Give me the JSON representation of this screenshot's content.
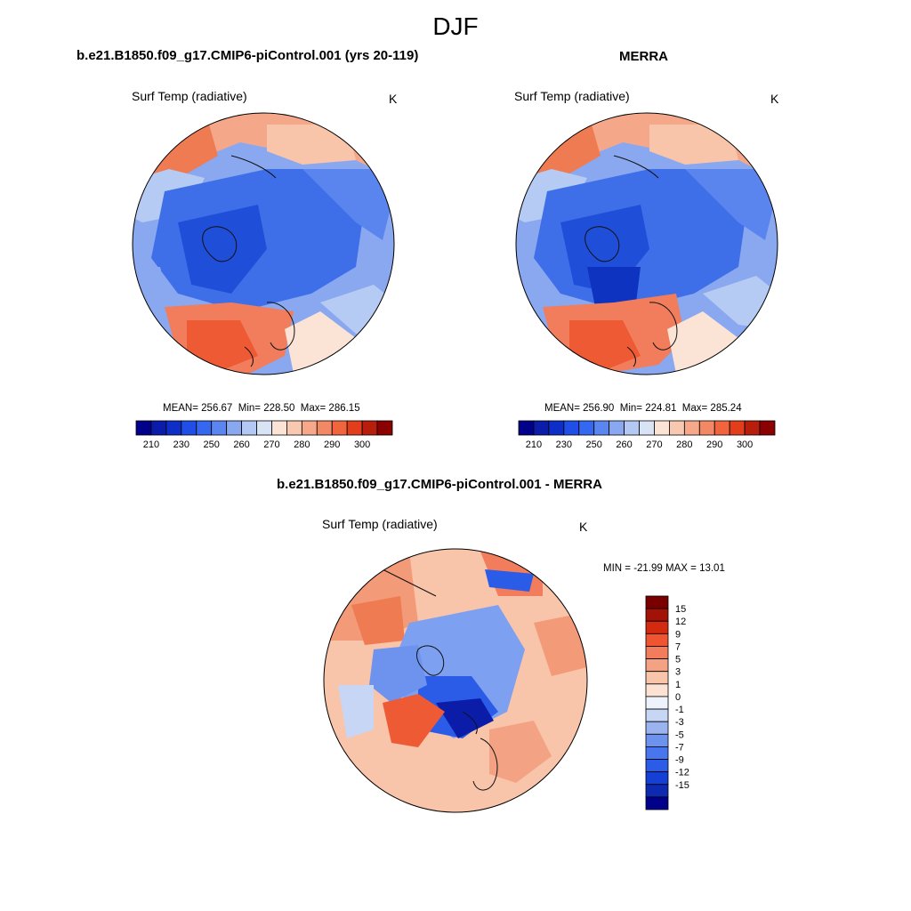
{
  "figure": {
    "title": "DJF"
  },
  "chart_data": [
    {
      "type": "heatmap",
      "projection": "north-polar-stereographic",
      "title": "b.e21.B1850.f09_g17.CMIP6-piControl.001 (yrs 20-119)",
      "variable": "Surf Temp (radiative)",
      "units": "K",
      "stats": {
        "mean_label": "MEAN=",
        "mean": "256.67",
        "min_label": "Min=",
        "min": "228.50",
        "max_label": "Max=",
        "max": "286.15"
      },
      "colorbar": {
        "orientation": "horizontal",
        "levels": [
          205,
          210,
          215,
          220,
          225,
          230,
          235,
          240,
          245,
          250,
          255,
          260,
          265,
          270,
          275,
          280,
          285,
          290,
          295,
          300
        ],
        "tick_labels": [
          "210",
          "230",
          "250",
          "260",
          "270",
          "280",
          "290",
          "300"
        ],
        "colors": [
          "#00008b",
          "#0a1ca8",
          "#0d2fc8",
          "#1f4fe6",
          "#3568f0",
          "#5b86f0",
          "#89a8f0",
          "#b3c8f2",
          "#d8e4f6",
          "#fbe4d6",
          "#f8c8b0",
          "#f6a88a",
          "#f38865",
          "#f0643e",
          "#e23e1c",
          "#b81e0c",
          "#8b0000"
        ]
      }
    },
    {
      "type": "heatmap",
      "projection": "north-polar-stereographic",
      "title": "MERRA",
      "variable": "Surf Temp (radiative)",
      "units": "K",
      "stats": {
        "mean_label": "MEAN=",
        "mean": "256.90",
        "min_label": "Min=",
        "min": "224.81",
        "max_label": "Max=",
        "max": "285.24"
      },
      "colorbar": {
        "orientation": "horizontal",
        "levels": [
          205,
          210,
          215,
          220,
          225,
          230,
          235,
          240,
          245,
          250,
          255,
          260,
          265,
          270,
          275,
          280,
          285,
          290,
          295,
          300
        ],
        "tick_labels": [
          "210",
          "230",
          "250",
          "260",
          "270",
          "280",
          "290",
          "300"
        ],
        "colors": [
          "#00008b",
          "#0a1ca8",
          "#0d2fc8",
          "#1f4fe6",
          "#3568f0",
          "#5b86f0",
          "#89a8f0",
          "#b3c8f2",
          "#d8e4f6",
          "#fbe4d6",
          "#f8c8b0",
          "#f6a88a",
          "#f38865",
          "#f0643e",
          "#e23e1c",
          "#b81e0c",
          "#8b0000"
        ]
      }
    },
    {
      "type": "heatmap",
      "projection": "north-polar-stereographic",
      "title": "b.e21.B1850.f09_g17.CMIP6-piControl.001 - MERRA",
      "variable": "Surf Temp (radiative)",
      "units": "K",
      "stats": {
        "min_label": "MIN =",
        "min": "-21.99",
        "max_label": "MAX =",
        "max": "13.01"
      },
      "colorbar": {
        "orientation": "vertical",
        "levels": [
          -15,
          -12,
          -9,
          -7,
          -5,
          -3,
          -1,
          0,
          1,
          3,
          5,
          7,
          9,
          12,
          15
        ],
        "tick_labels": [
          "-15",
          "-12",
          "-9",
          "-7",
          "-5",
          "-3",
          "-1",
          "0",
          "1",
          "3",
          "5",
          "7",
          "9",
          "12",
          "15"
        ],
        "colors": [
          "#00008b",
          "#0d2ab0",
          "#1540d6",
          "#2a5ce8",
          "#4876ee",
          "#6e93ee",
          "#9bb4f0",
          "#c6d6f4",
          "#eef2fa",
          "#fce2d2",
          "#f8c4aa",
          "#f4a284",
          "#f17d5c",
          "#ee5530",
          "#d42a10",
          "#a31206",
          "#7a0000"
        ]
      }
    }
  ]
}
